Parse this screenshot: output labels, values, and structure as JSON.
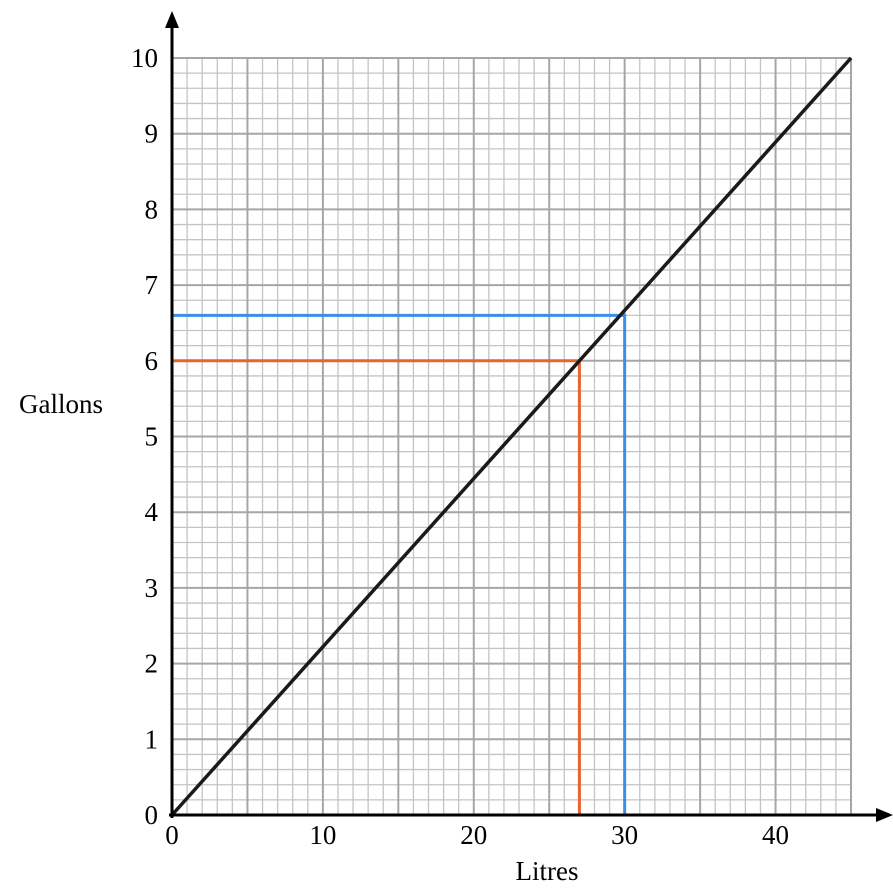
{
  "chart_data": {
    "type": "line",
    "title": "",
    "xlabel": "Litres",
    "ylabel": "Gallons",
    "xlim": [
      0,
      45
    ],
    "ylim": [
      0,
      10
    ],
    "x_ticks": [
      "0",
      "10",
      "20",
      "30",
      "40"
    ],
    "y_ticks": [
      "0",
      "1",
      "2",
      "3",
      "4",
      "5",
      "6",
      "7",
      "8",
      "9",
      "10"
    ],
    "grid": true,
    "series": [
      {
        "x": [
          0,
          45
        ],
        "y": [
          0,
          10
        ],
        "color": "#1a1a1a"
      }
    ],
    "reading_lines": [
      {
        "color": "#e8642c",
        "points": [
          [
            0,
            6
          ],
          [
            27,
            6
          ],
          [
            27,
            0
          ]
        ]
      },
      {
        "color": "#3b8ee8",
        "points": [
          [
            0,
            6.6
          ],
          [
            30,
            6.6
          ],
          [
            30,
            0
          ]
        ]
      }
    ]
  }
}
